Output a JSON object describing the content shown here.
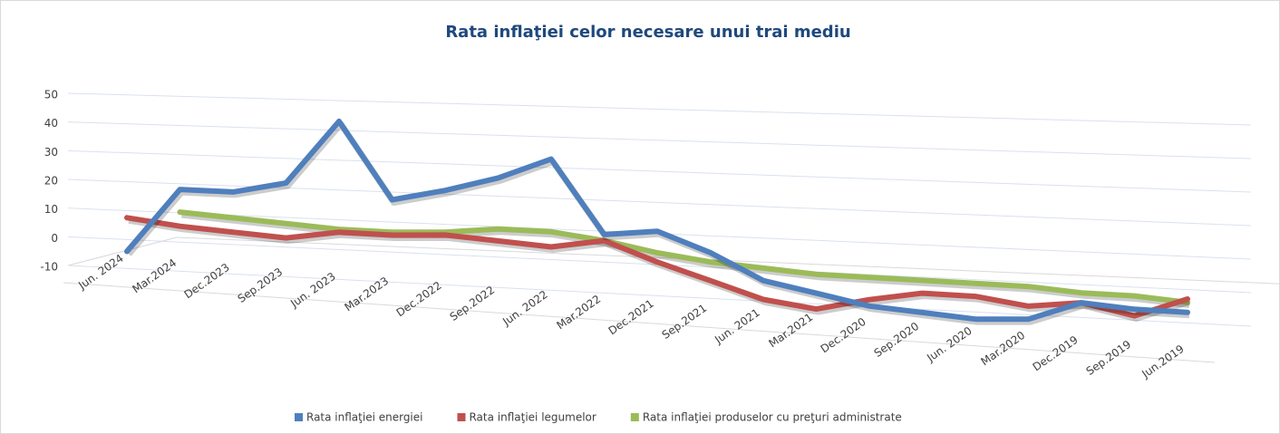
{
  "chart_data": {
    "type": "line",
    "title": "Rata inflaţiei celor necesare unui trai mediu",
    "categories": [
      "Jun. 2024",
      "Mar.2024",
      "Dec.2023",
      "Sep.2023",
      "Jun. 2023",
      "Mar.2023",
      "Dec.2022",
      "Sep.2022",
      "Jun. 2022",
      "Mar.2022",
      "Dec.2021",
      "Sep.2021",
      "Jun. 2021",
      "Mar.2021",
      "Dec.2020",
      "Sep.2020",
      "Jun. 2020",
      "Mar.2020",
      "Dec.2019",
      "Sep.2019",
      "Jun.2019"
    ],
    "series": [
      {
        "name": "Rata inflaţiei energiei",
        "color": "#4f7fbd",
        "values": [
          -5,
          18,
          18,
          22,
          44,
          18,
          22,
          27,
          34,
          10,
          12,
          6,
          -2,
          -5,
          -8,
          -9,
          -10,
          -9,
          -3,
          -4,
          -4
        ]
      },
      {
        "name": "Rata inflaţiei legumelor",
        "color": "#c0504d",
        "values": [
          7,
          5,
          4,
          3,
          6,
          6,
          7,
          6,
          5,
          8,
          2,
          -3,
          -8,
          -10,
          -6,
          -3,
          -3,
          -5,
          -3,
          -6,
          0
        ]
      },
      {
        "name": "Rata inflaţiei produselor cu preţuri administrate",
        "color": "#9bbb59",
        "values": [
          null,
          10,
          9,
          8,
          7,
          7,
          8,
          10,
          10,
          8,
          5,
          3,
          2,
          1,
          1,
          1,
          1,
          1,
          0,
          0,
          -1
        ]
      }
    ],
    "ylim": [
      -10,
      50
    ],
    "yticks": [
      -10,
      0,
      10,
      20,
      30,
      40,
      50
    ],
    "grid": true,
    "legend": "bottom"
  }
}
